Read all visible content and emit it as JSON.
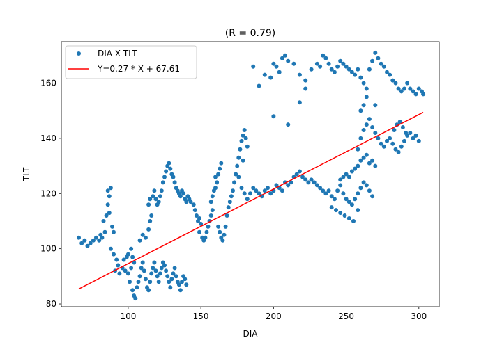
{
  "chart_data": {
    "type": "scatter",
    "title": "(R = 0.79)",
    "xlabel": "DIA",
    "ylabel": "TLT",
    "xlim": [
      54,
      314
    ],
    "ylim": [
      79,
      175
    ],
    "xticks": [
      100,
      150,
      200,
      250,
      300
    ],
    "yticks": [
      80,
      100,
      120,
      140,
      160
    ],
    "grid": false,
    "legend_position": "upper-left",
    "colors": {
      "scatter": "#1f77b4",
      "fit_line": "#ff0000"
    },
    "series": [
      {
        "name": "DIA X TLT",
        "kind": "scatter",
        "points": [
          [
            66,
            104
          ],
          [
            68,
            102
          ],
          [
            70,
            103
          ],
          [
            72,
            101
          ],
          [
            74,
            102
          ],
          [
            76,
            103
          ],
          [
            78,
            104
          ],
          [
            80,
            103
          ],
          [
            81,
            105
          ],
          [
            82,
            104
          ],
          [
            84,
            106
          ],
          [
            83,
            110
          ],
          [
            85,
            112
          ],
          [
            86,
            116
          ],
          [
            87,
            119
          ],
          [
            86,
            121
          ],
          [
            88,
            122
          ],
          [
            87,
            113
          ],
          [
            89,
            108
          ],
          [
            90,
            106
          ],
          [
            88,
            100
          ],
          [
            90,
            98
          ],
          [
            92,
            96
          ],
          [
            93,
            94
          ],
          [
            91,
            92
          ],
          [
            94,
            91
          ],
          [
            96,
            93
          ],
          [
            98,
            92
          ],
          [
            97,
            96
          ],
          [
            99,
            97
          ],
          [
            100,
            98
          ],
          [
            102,
            100
          ],
          [
            103,
            97
          ],
          [
            104,
            95
          ],
          [
            102,
            93
          ],
          [
            100,
            91
          ],
          [
            101,
            88
          ],
          [
            103,
            85
          ],
          [
            104,
            83
          ],
          [
            105,
            82
          ],
          [
            106,
            86
          ],
          [
            107,
            88
          ],
          [
            108,
            90
          ],
          [
            109,
            93
          ],
          [
            110,
            95
          ],
          [
            111,
            92
          ],
          [
            112,
            89
          ],
          [
            113,
            86
          ],
          [
            114,
            85
          ],
          [
            115,
            88
          ],
          [
            116,
            91
          ],
          [
            117,
            93
          ],
          [
            118,
            95
          ],
          [
            119,
            92
          ],
          [
            120,
            90
          ],
          [
            121,
            88
          ],
          [
            122,
            91
          ],
          [
            123,
            93
          ],
          [
            124,
            95
          ],
          [
            125,
            94
          ],
          [
            126,
            92
          ],
          [
            127,
            90
          ],
          [
            128,
            88
          ],
          [
            129,
            86
          ],
          [
            130,
            89
          ],
          [
            131,
            91
          ],
          [
            132,
            93
          ],
          [
            133,
            90
          ],
          [
            134,
            88
          ],
          [
            135,
            87
          ],
          [
            136,
            85
          ],
          [
            137,
            88
          ],
          [
            138,
            90
          ],
          [
            139,
            89
          ],
          [
            140,
            87
          ],
          [
            108,
            103
          ],
          [
            110,
            105
          ],
          [
            112,
            104
          ],
          [
            114,
            107
          ],
          [
            115,
            110
          ],
          [
            116,
            112
          ],
          [
            114,
            116
          ],
          [
            115,
            118
          ],
          [
            117,
            119
          ],
          [
            118,
            121
          ],
          [
            119,
            118
          ],
          [
            120,
            116
          ],
          [
            121,
            117
          ],
          [
            122,
            119
          ],
          [
            123,
            121
          ],
          [
            124,
            124
          ],
          [
            125,
            126
          ],
          [
            126,
            128
          ],
          [
            127,
            130
          ],
          [
            128,
            131
          ],
          [
            129,
            129
          ],
          [
            130,
            127
          ],
          [
            131,
            126
          ],
          [
            132,
            124
          ],
          [
            133,
            122
          ],
          [
            134,
            121
          ],
          [
            135,
            120
          ],
          [
            136,
            119
          ],
          [
            137,
            121
          ],
          [
            138,
            120
          ],
          [
            139,
            118
          ],
          [
            140,
            117
          ],
          [
            141,
            119
          ],
          [
            142,
            118
          ],
          [
            143,
            117
          ],
          [
            145,
            116
          ],
          [
            146,
            114
          ],
          [
            147,
            112
          ],
          [
            148,
            110
          ],
          [
            149,
            111
          ],
          [
            150,
            109
          ],
          [
            149,
            106
          ],
          [
            151,
            104
          ],
          [
            152,
            103
          ],
          [
            153,
            104
          ],
          [
            154,
            106
          ],
          [
            155,
            108
          ],
          [
            156,
            110
          ],
          [
            157,
            112
          ],
          [
            158,
            114
          ],
          [
            157,
            117
          ],
          [
            158,
            119
          ],
          [
            159,
            121
          ],
          [
            160,
            122
          ],
          [
            161,
            124
          ],
          [
            160,
            126
          ],
          [
            162,
            127
          ],
          [
            163,
            129
          ],
          [
            164,
            131
          ],
          [
            162,
            108
          ],
          [
            163,
            106
          ],
          [
            164,
            104
          ],
          [
            165,
            103
          ],
          [
            166,
            105
          ],
          [
            167,
            108
          ],
          [
            168,
            112
          ],
          [
            169,
            115
          ],
          [
            170,
            117
          ],
          [
            171,
            119
          ],
          [
            172,
            121
          ],
          [
            173,
            124
          ],
          [
            174,
            127
          ],
          [
            175,
            130
          ],
          [
            176,
            133
          ],
          [
            177,
            136
          ],
          [
            178,
            139
          ],
          [
            179,
            141
          ],
          [
            180,
            143
          ],
          [
            181,
            140
          ],
          [
            182,
            137
          ],
          [
            179,
            132
          ],
          [
            176,
            126
          ],
          [
            178,
            122
          ],
          [
            180,
            120
          ],
          [
            182,
            118
          ],
          [
            184,
            120
          ],
          [
            186,
            122
          ],
          [
            188,
            121
          ],
          [
            190,
            120
          ],
          [
            192,
            119
          ],
          [
            194,
            121
          ],
          [
            196,
            122
          ],
          [
            198,
            120
          ],
          [
            200,
            121
          ],
          [
            202,
            123
          ],
          [
            204,
            122
          ],
          [
            206,
            121
          ],
          [
            208,
            124
          ],
          [
            210,
            123
          ],
          [
            212,
            124
          ],
          [
            214,
            126
          ],
          [
            216,
            127
          ],
          [
            218,
            128
          ],
          [
            220,
            126
          ],
          [
            222,
            125
          ],
          [
            224,
            124
          ],
          [
            226,
            125
          ],
          [
            228,
            124
          ],
          [
            230,
            123
          ],
          [
            232,
            122
          ],
          [
            234,
            121
          ],
          [
            236,
            120
          ],
          [
            238,
            121
          ],
          [
            240,
            119
          ],
          [
            242,
            118
          ],
          [
            244,
            121
          ],
          [
            246,
            123
          ],
          [
            248,
            120
          ],
          [
            250,
            118
          ],
          [
            252,
            117
          ],
          [
            254,
            116
          ],
          [
            256,
            118
          ],
          [
            258,
            120
          ],
          [
            260,
            122
          ],
          [
            262,
            124
          ],
          [
            264,
            123
          ],
          [
            266,
            121
          ],
          [
            268,
            119
          ],
          [
            240,
            115
          ],
          [
            243,
            114
          ],
          [
            246,
            113
          ],
          [
            249,
            112
          ],
          [
            252,
            111
          ],
          [
            255,
            110
          ],
          [
            258,
            114
          ],
          [
            246,
            125
          ],
          [
            248,
            126
          ],
          [
            250,
            127
          ],
          [
            252,
            126
          ],
          [
            254,
            128
          ],
          [
            256,
            129
          ],
          [
            258,
            130
          ],
          [
            260,
            132
          ],
          [
            262,
            133
          ],
          [
            264,
            134
          ],
          [
            266,
            131
          ],
          [
            268,
            132
          ],
          [
            270,
            130
          ],
          [
            258,
            136
          ],
          [
            260,
            140
          ],
          [
            262,
            143
          ],
          [
            264,
            145
          ],
          [
            266,
            147
          ],
          [
            268,
            144
          ],
          [
            270,
            142
          ],
          [
            272,
            140
          ],
          [
            274,
            138
          ],
          [
            276,
            137
          ],
          [
            278,
            139
          ],
          [
            280,
            140
          ],
          [
            282,
            138
          ],
          [
            284,
            136
          ],
          [
            286,
            135
          ],
          [
            288,
            137
          ],
          [
            290,
            139
          ],
          [
            292,
            141
          ],
          [
            294,
            142
          ],
          [
            296,
            140
          ],
          [
            298,
            141
          ],
          [
            300,
            139
          ],
          [
            283,
            143
          ],
          [
            285,
            145
          ],
          [
            287,
            146
          ],
          [
            289,
            144
          ],
          [
            291,
            142
          ],
          [
            186,
            166
          ],
          [
            190,
            159
          ],
          [
            194,
            163
          ],
          [
            198,
            162
          ],
          [
            200,
            167
          ],
          [
            202,
            166
          ],
          [
            204,
            164
          ],
          [
            206,
            169
          ],
          [
            208,
            170
          ],
          [
            210,
            168
          ],
          [
            214,
            167
          ],
          [
            218,
            163
          ],
          [
            222,
            161
          ],
          [
            226,
            165
          ],
          [
            230,
            167
          ],
          [
            232,
            166
          ],
          [
            234,
            170
          ],
          [
            236,
            169
          ],
          [
            238,
            167
          ],
          [
            240,
            165
          ],
          [
            242,
            164
          ],
          [
            244,
            166
          ],
          [
            246,
            168
          ],
          [
            248,
            167
          ],
          [
            250,
            166
          ],
          [
            252,
            165
          ],
          [
            254,
            164
          ],
          [
            256,
            163
          ],
          [
            258,
            165
          ],
          [
            260,
            162
          ],
          [
            262,
            160
          ],
          [
            264,
            158
          ],
          [
            266,
            165
          ],
          [
            268,
            168
          ],
          [
            270,
            171
          ],
          [
            272,
            169
          ],
          [
            274,
            167
          ],
          [
            276,
            166
          ],
          [
            278,
            164
          ],
          [
            280,
            163
          ],
          [
            282,
            161
          ],
          [
            284,
            160
          ],
          [
            286,
            158
          ],
          [
            288,
            157
          ],
          [
            290,
            158
          ],
          [
            292,
            160
          ],
          [
            294,
            158
          ],
          [
            296,
            157
          ],
          [
            298,
            156
          ],
          [
            300,
            158
          ],
          [
            302,
            157
          ],
          [
            303,
            156
          ],
          [
            260,
            150
          ],
          [
            262,
            152
          ],
          [
            264,
            155
          ],
          [
            270,
            152
          ],
          [
            218,
            153
          ],
          [
            200,
            148
          ],
          [
            210,
            145
          ],
          [
            222,
            158
          ]
        ]
      },
      {
        "name": "Y=0.27 * X + 67.61",
        "kind": "line",
        "slope": 0.27,
        "intercept": 67.61,
        "x_range": [
          66,
          303
        ]
      }
    ]
  }
}
